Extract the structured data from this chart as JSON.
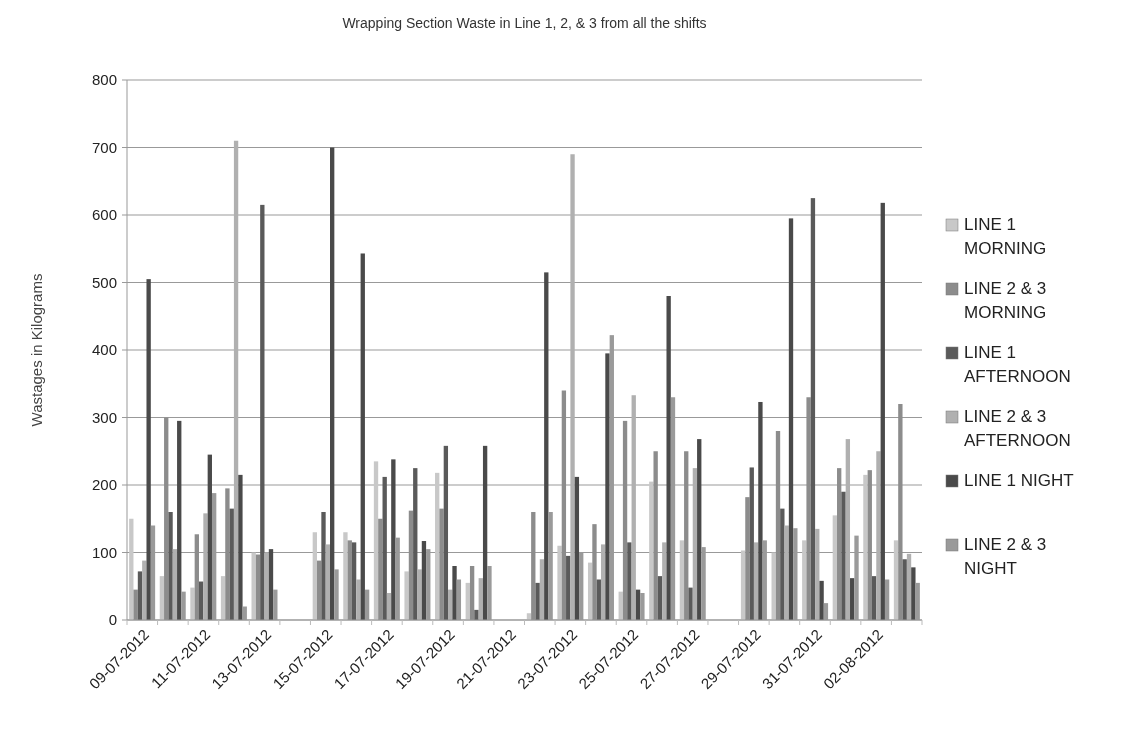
{
  "chart_data": {
    "type": "bar",
    "title": "Wrapping Section Waste in Line 1, 2, & 3 from all the shifts",
    "ylabel": "Wastages in Kilograms",
    "categories": [
      "09-07-2012",
      null,
      "11-07-2012",
      null,
      "13-07-2012",
      null,
      "15-07-2012",
      null,
      "17-07-2012",
      null,
      "19-07-2012",
      null,
      "21-07-2012",
      null,
      "23-07-2012",
      null,
      "25-07-2012",
      null,
      "27-07-2012",
      null,
      "29-07-2012",
      null,
      "31-07-2012",
      null,
      "02-08-2012",
      null
    ],
    "ylim": [
      0,
      800
    ],
    "yticks": [
      0,
      100,
      200,
      300,
      400,
      500,
      600,
      700,
      800
    ],
    "grid": "y",
    "legend": "right",
    "series": [
      {
        "name": "LINE 1 MORNING",
        "color": "#c8c8c8",
        "values": [
          150,
          65,
          48,
          65,
          100,
          null,
          130,
          130,
          235,
          72,
          218,
          55,
          null,
          10,
          110,
          85,
          42,
          205,
          118,
          null,
          103,
          100,
          118,
          155,
          215,
          118
        ]
      },
      {
        "name": "LINE 2 & 3 MORNING",
        "color": "#8c8c8c",
        "values": [
          45,
          300,
          127,
          195,
          97,
          null,
          88,
          118,
          150,
          162,
          165,
          80,
          null,
          160,
          340,
          142,
          295,
          250,
          250,
          null,
          182,
          280,
          330,
          225,
          222,
          320
        ]
      },
      {
        "name": "LINE 1 AFTERNOON",
        "color": "#5a5a5a",
        "values": [
          72,
          160,
          57,
          165,
          615,
          null,
          160,
          115,
          212,
          225,
          258,
          15,
          null,
          55,
          95,
          60,
          115,
          65,
          48,
          null,
          226,
          165,
          625,
          190,
          65,
          90
        ]
      },
      {
        "name": "LINE 2 & 3 AFTERNOON",
        "color": "#b0b0b0",
        "values": [
          88,
          105,
          158,
          710,
          100,
          null,
          112,
          60,
          40,
          75,
          45,
          62,
          null,
          90,
          690,
          112,
          333,
          115,
          225,
          null,
          115,
          140,
          135,
          268,
          250,
          98
        ]
      },
      {
        "name": "LINE 1 NIGHT",
        "color": "#4a4a4a",
        "values": [
          505,
          295,
          245,
          215,
          105,
          null,
          700,
          543,
          238,
          117,
          80,
          258,
          null,
          515,
          212,
          395,
          45,
          480,
          268,
          null,
          323,
          595,
          58,
          62,
          618,
          78
        ]
      },
      {
        "name": "LINE 2 & 3 NIGHT",
        "color": "#9a9a9a",
        "values": [
          140,
          42,
          188,
          20,
          45,
          null,
          75,
          45,
          122,
          105,
          60,
          80,
          null,
          160,
          100,
          422,
          40,
          330,
          108,
          null,
          118,
          136,
          25,
          125,
          60,
          55
        ]
      }
    ]
  }
}
